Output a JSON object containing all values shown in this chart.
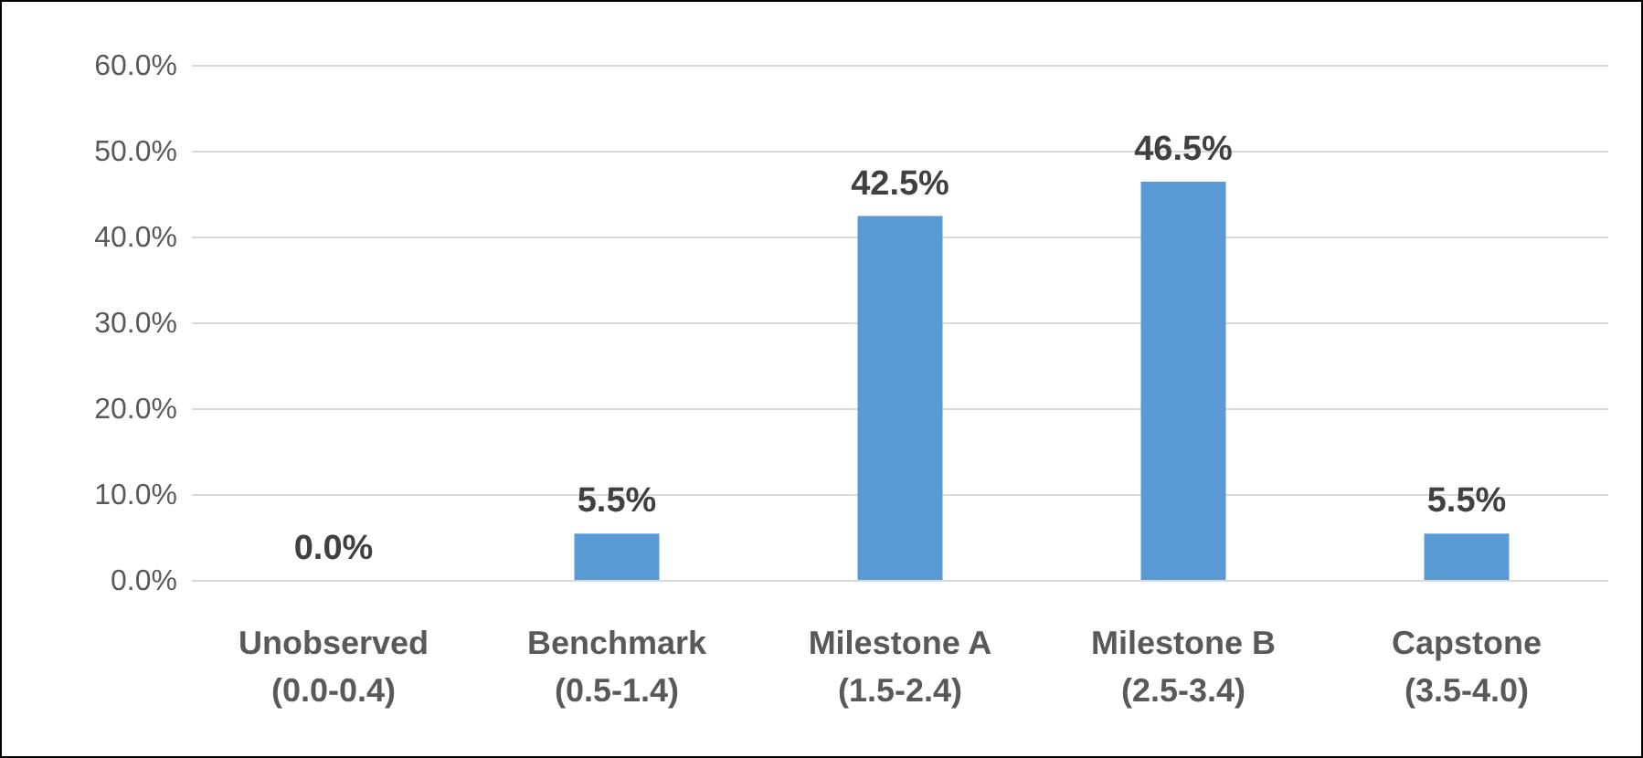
{
  "chart_data": {
    "type": "bar",
    "categories": [
      "Unobserved (0.0-0.4)",
      "Benchmark (0.5-1.4)",
      "Milestone A (1.5-2.4)",
      "Milestone B (2.5-3.4)",
      "Capstone (3.5-4.0)"
    ],
    "values": [
      0,
      5.5,
      42.5,
      46.5,
      5.5
    ],
    "value_labels": [
      "0.0%",
      "5.5%",
      "42.5%",
      "46.5%",
      "5.5%"
    ],
    "color": "#5b9bd5",
    "ylim": [
      0,
      60
    ],
    "yticks": [
      {
        "value": 0,
        "label": "0.0%"
      },
      {
        "value": 10,
        "label": "10.0%"
      },
      {
        "value": 20,
        "label": "20.0%"
      },
      {
        "value": 30,
        "label": "30.0%"
      },
      {
        "value": 40,
        "label": "40.0%"
      },
      {
        "value": 50,
        "label": "50.0%"
      },
      {
        "value": 60,
        "label": "60.0%"
      }
    ],
    "grid": "y"
  }
}
